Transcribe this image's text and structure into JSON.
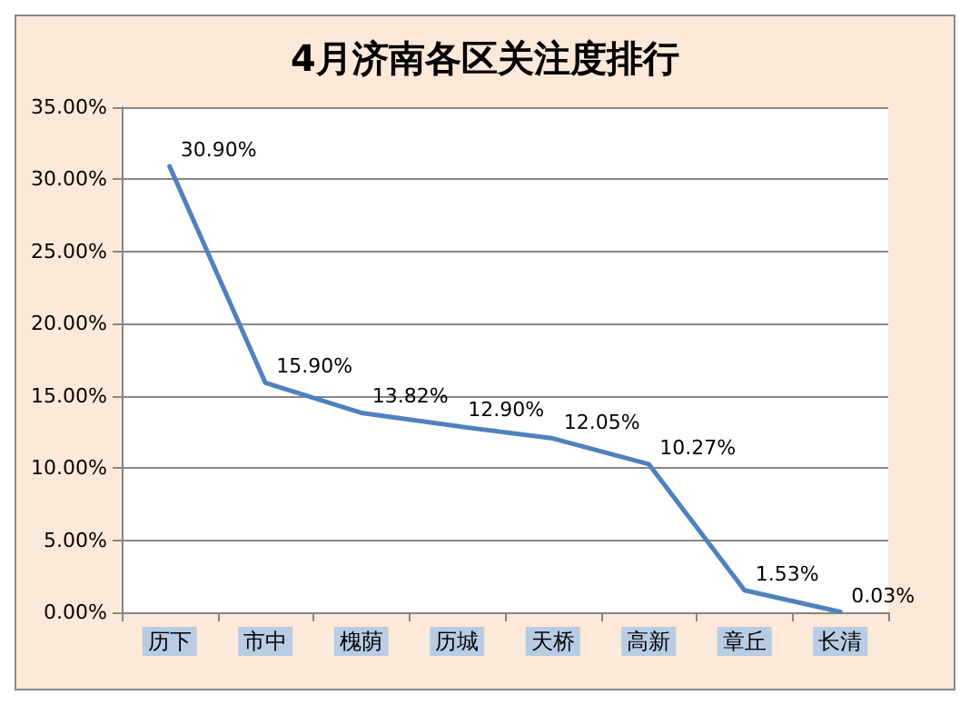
{
  "chart_data": {
    "type": "line",
    "title": "4月济南各区关注度排行",
    "categories": [
      "历下",
      "市中",
      "槐荫",
      "历城",
      "天桥",
      "高新",
      "章丘",
      "长清"
    ],
    "series": [
      {
        "color": "#4f81bd",
        "values": [
          30.9,
          15.9,
          13.82,
          12.9,
          12.05,
          10.27,
          1.53,
          0.03
        ],
        "value_labels": [
          "30.90%",
          "15.90%",
          "13.82%",
          "12.90%",
          "12.05%",
          "10.27%",
          "1.53%",
          "0.03%"
        ]
      }
    ],
    "ylim": [
      0,
      35
    ],
    "yticks": [
      {
        "value": 0,
        "label": "0.00%"
      },
      {
        "value": 5,
        "label": "5.00%"
      },
      {
        "value": 10,
        "label": "10.00%"
      },
      {
        "value": 15,
        "label": "15.00%"
      },
      {
        "value": 20,
        "label": "20.00%"
      },
      {
        "value": 25,
        "label": "25.00%"
      },
      {
        "value": 30,
        "label": "30.00%"
      },
      {
        "value": 35,
        "label": "35.00%"
      }
    ],
    "grid": "y",
    "marker": "none",
    "line_style": "solid"
  }
}
